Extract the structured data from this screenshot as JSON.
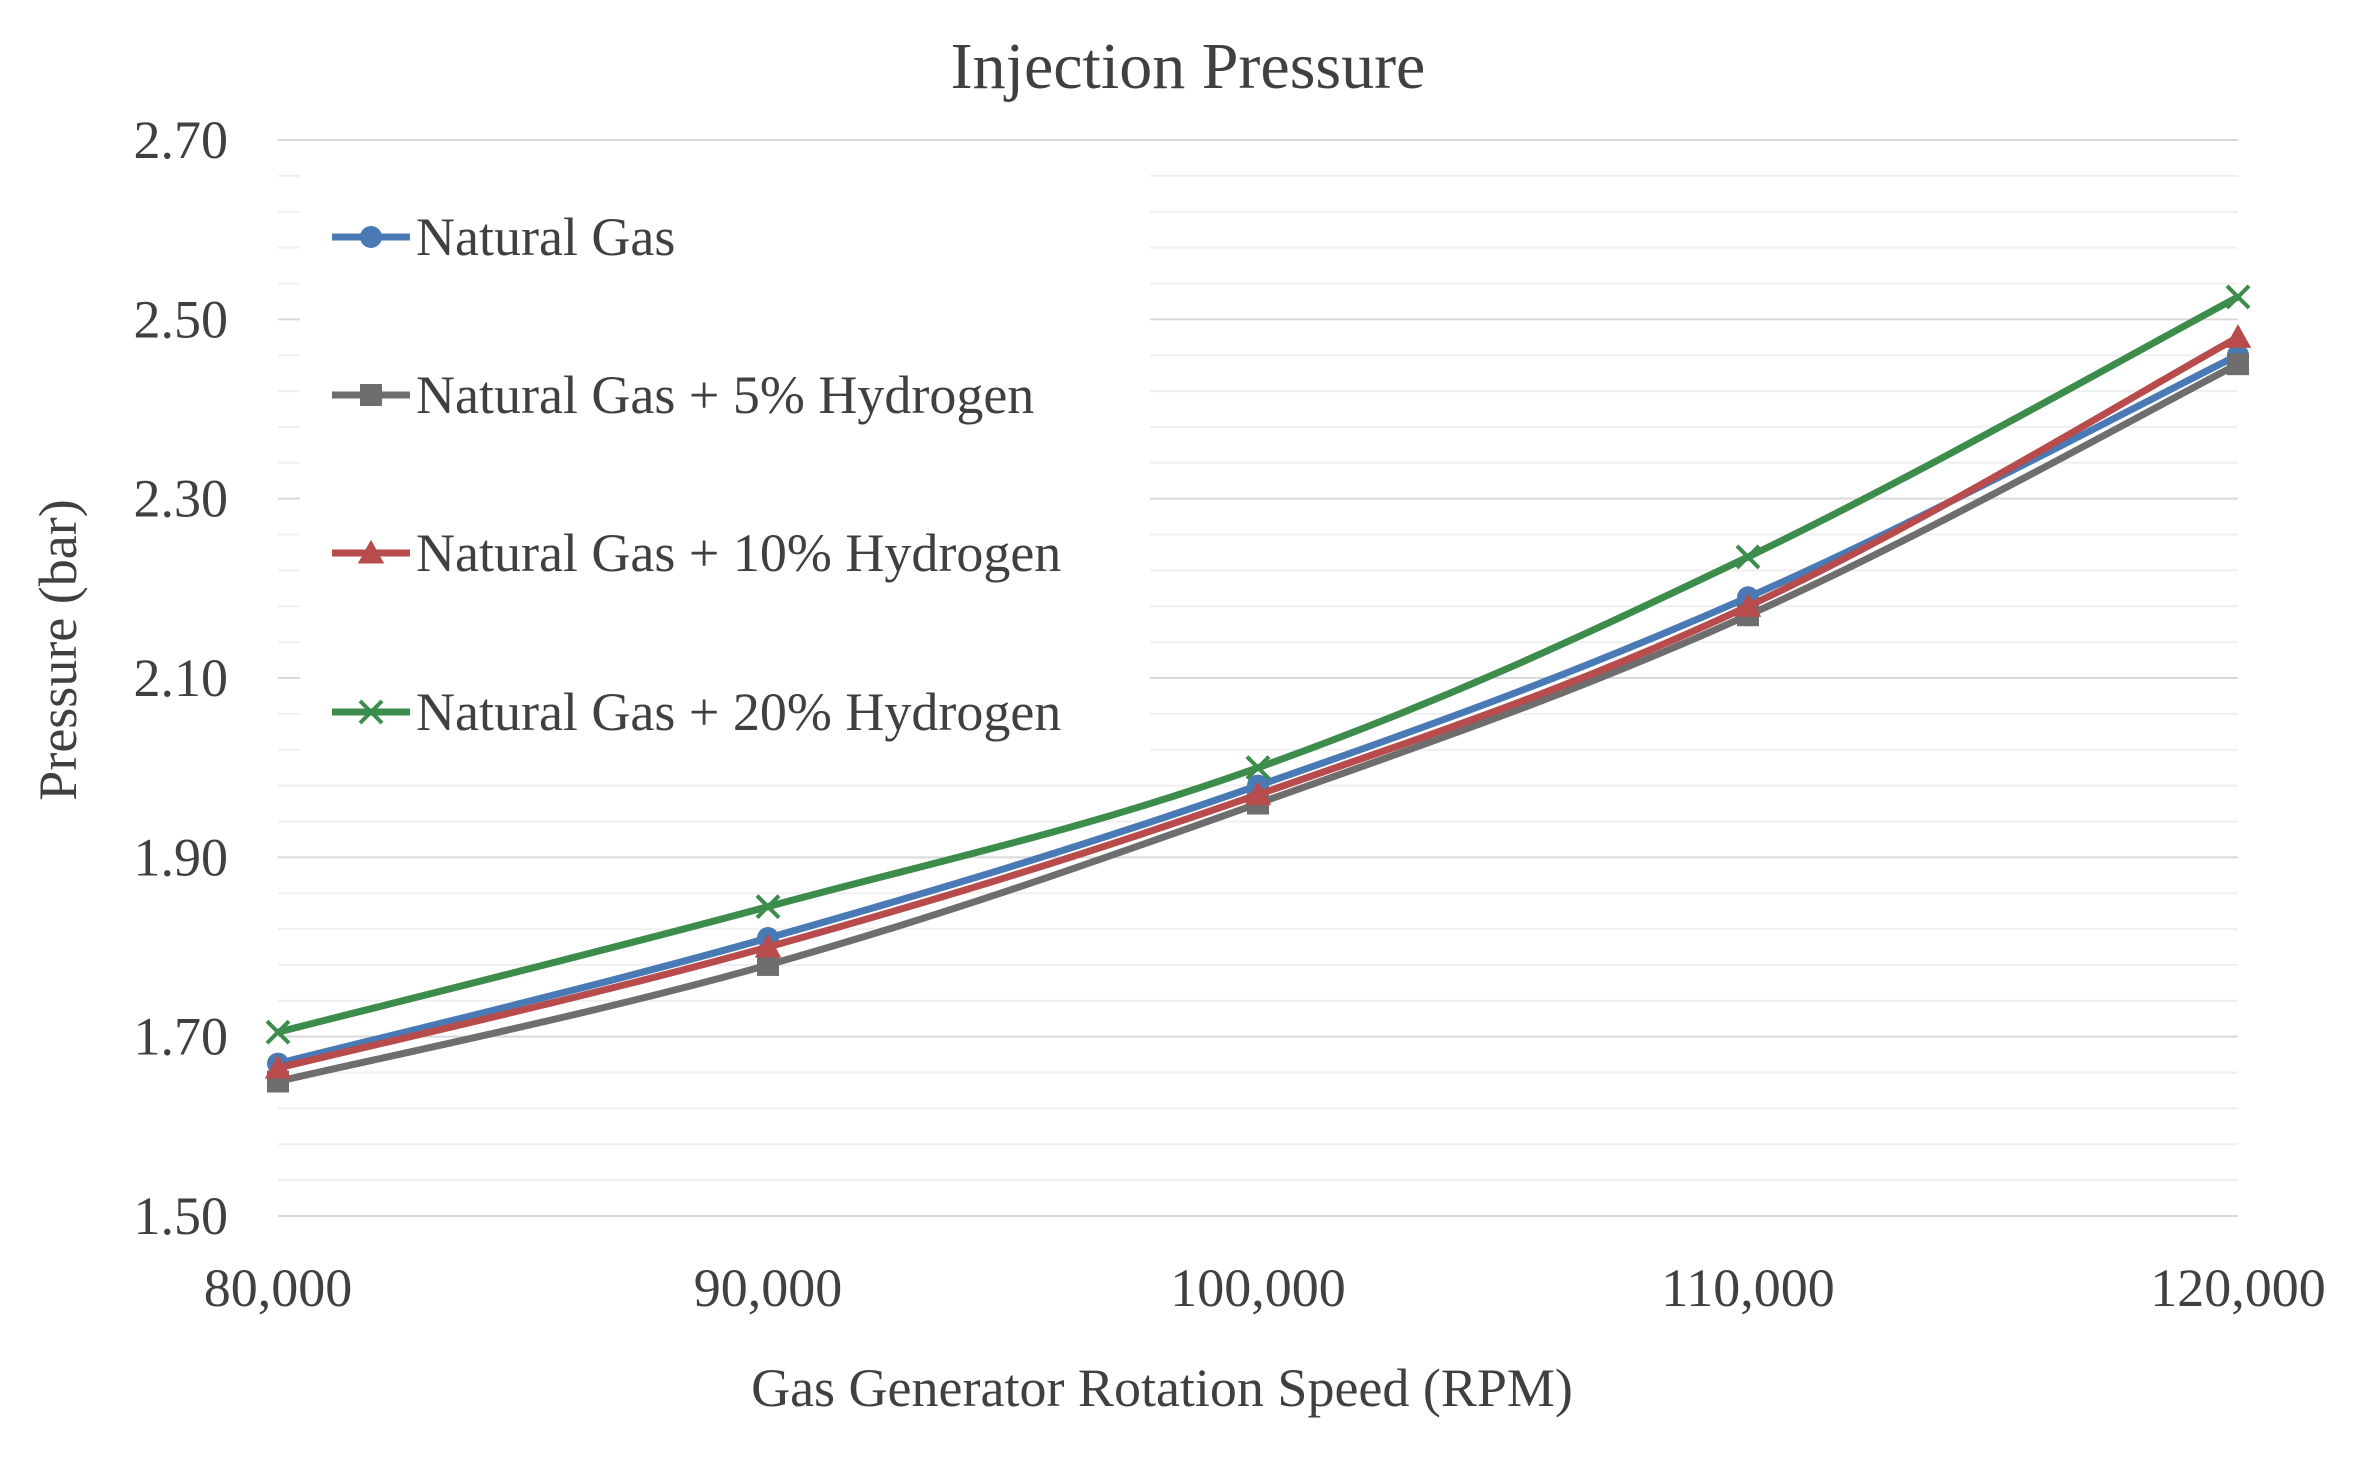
{
  "chart_data": {
    "type": "line",
    "title": "Injection Pressure",
    "xlabel": "Gas Generator Rotation Speed (RPM)",
    "ylabel": "Pressure (bar)",
    "x": [
      80000,
      90000,
      100000,
      110000,
      120000
    ],
    "x_tick_labels": [
      "80,000",
      "90,000",
      "100,000",
      "110,000",
      "120,000"
    ],
    "y_tick_labels": [
      "1.50",
      "1.70",
      "1.90",
      "2.10",
      "2.30",
      "2.50",
      "2.70"
    ],
    "ylim": [
      1.5,
      2.7
    ],
    "xlim": [
      80000,
      120000
    ],
    "grid": true,
    "legend_position": "top-left",
    "series": [
      {
        "name": "Natural Gas",
        "color": "#4a7ab5",
        "marker": "circle",
        "values": [
          1.67,
          1.81,
          1.98,
          2.19,
          2.46
        ]
      },
      {
        "name": "Natural Gas + 5% Hydrogen",
        "color": "#6e6e6e",
        "marker": "square",
        "values": [
          1.65,
          1.78,
          1.96,
          2.17,
          2.45
        ]
      },
      {
        "name": "Natural Gas + 10% Hydrogen",
        "color": "#b84b4b",
        "marker": "triangle",
        "values": [
          1.665,
          1.8,
          1.97,
          2.18,
          2.48
        ]
      },
      {
        "name": "Natural Gas + 20% Hydrogen",
        "color": "#3c8c4c",
        "marker": "x",
        "values": [
          1.705,
          1.845,
          2.0,
          2.235,
          2.525
        ]
      }
    ]
  }
}
